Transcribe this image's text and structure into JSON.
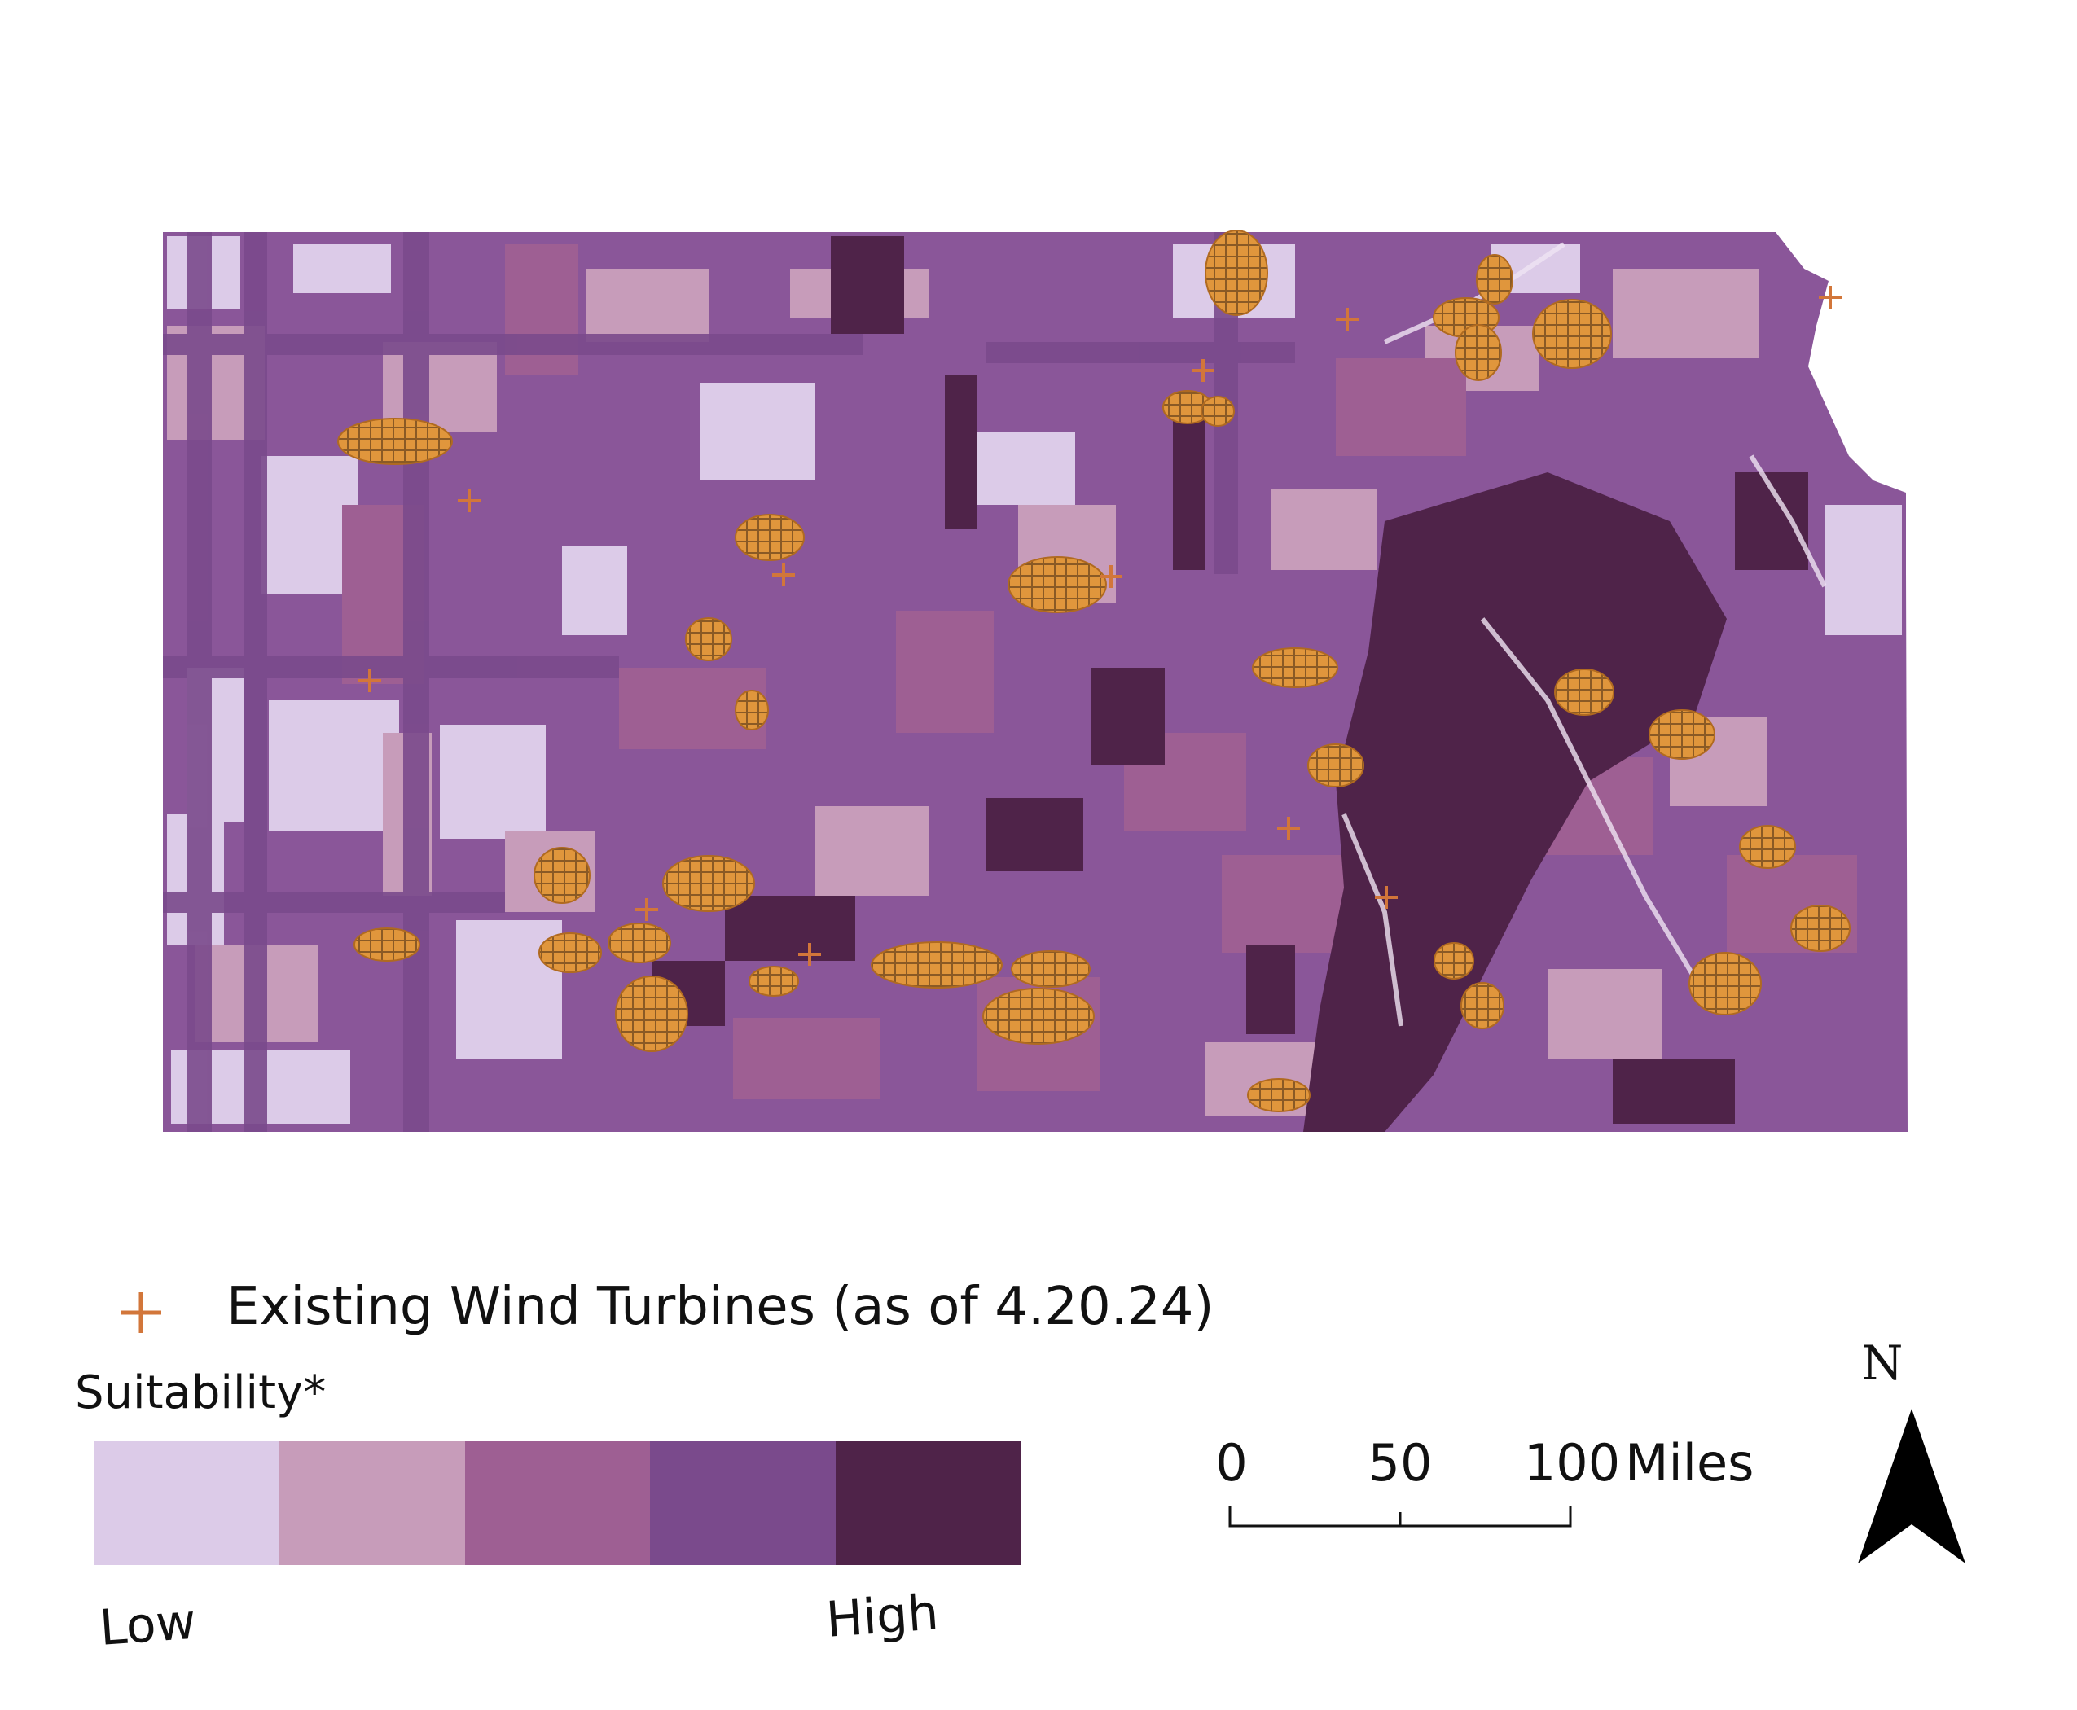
{
  "map": {
    "region": "Kansas",
    "state_outline_color": "#6e3a7e",
    "shade_colors": [
      "#dccbe8",
      "#c79cba",
      "#9e5f93",
      "#7a4a8c",
      "#4f2349"
    ],
    "turbine_color": "#e0963c"
  },
  "legend": {
    "turbine_symbol_icon": "plus-marker-icon",
    "turbine_label": "Existing Wind Turbines (as of 4.20.24)",
    "suitability_title": "Suitability*",
    "low_label": "Low",
    "high_label": "High",
    "classes": [
      {
        "name": "class-1",
        "color": "#dccbe8"
      },
      {
        "name": "class-2",
        "color": "#c79cba"
      },
      {
        "name": "class-3",
        "color": "#9e5f93"
      },
      {
        "name": "class-4",
        "color": "#7a4a8c"
      },
      {
        "name": "class-5",
        "color": "#4f2349"
      }
    ]
  },
  "scale_bar": {
    "ticks": [
      "0",
      "50",
      "100"
    ],
    "units": "Miles"
  },
  "north_arrow": {
    "letter": "N",
    "icon": "north-arrow-icon"
  }
}
